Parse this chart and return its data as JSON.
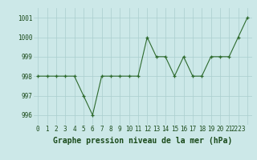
{
  "x": [
    0,
    1,
    2,
    3,
    4,
    5,
    6,
    7,
    8,
    9,
    10,
    11,
    12,
    13,
    14,
    15,
    16,
    17,
    18,
    19,
    20,
    21,
    22,
    23
  ],
  "y": [
    998,
    998,
    998,
    998,
    998,
    997,
    996,
    998,
    998,
    998,
    998,
    998,
    1000,
    999,
    999,
    998,
    999,
    998,
    998,
    999,
    999,
    999,
    1000,
    1001
  ],
  "line_color": "#2d6a2d",
  "marker_color": "#2d6a2d",
  "bg_color": "#cce8e8",
  "grid_color": "#aacece",
  "xlabel": "Graphe pression niveau de la mer (hPa)",
  "xlabel_color": "#1a4a1a",
  "ylim": [
    995.5,
    1001.5
  ],
  "xlim": [
    -0.5,
    23.5
  ],
  "yticks": [
    996,
    997,
    998,
    999,
    1000,
    1001
  ],
  "xtick_labels": [
    "0",
    "1",
    "2",
    "3",
    "4",
    "5",
    "6",
    "7",
    "8",
    "9",
    "10",
    "11",
    "12",
    "13",
    "14",
    "15",
    "16",
    "17",
    "18",
    "19",
    "20",
    "21",
    "2223",
    ""
  ],
  "tick_fontsize": 5.5,
  "xlabel_fontsize": 7.0
}
